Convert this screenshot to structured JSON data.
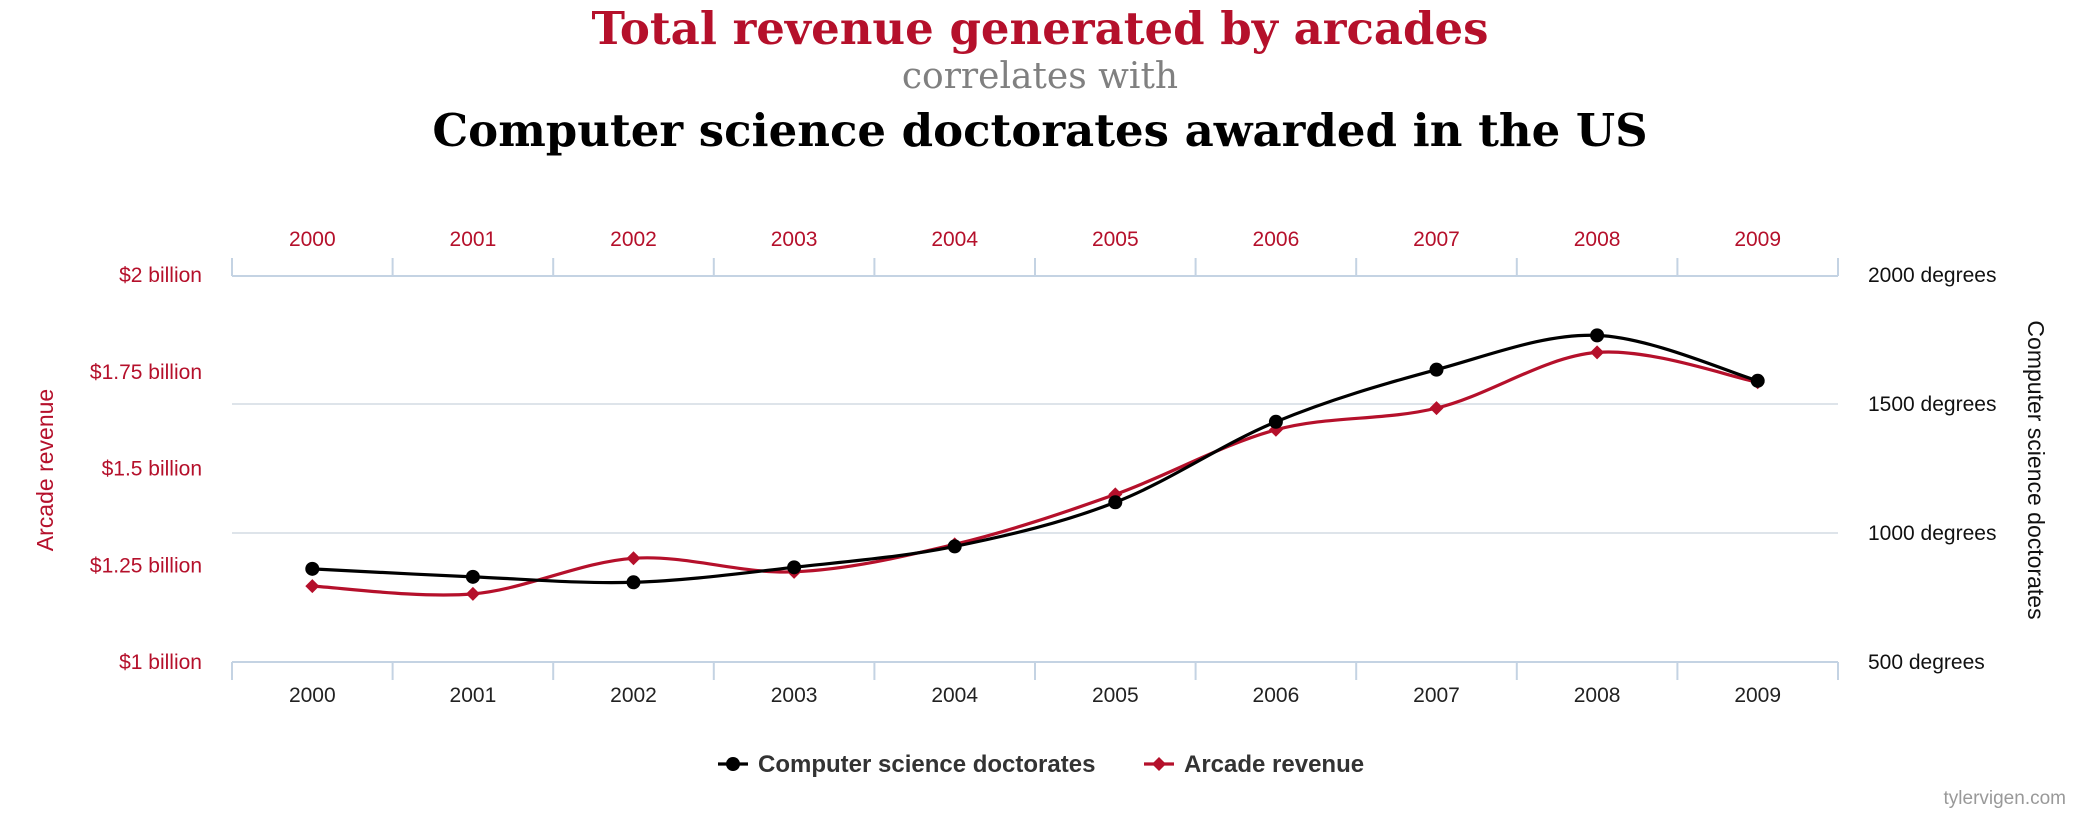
{
  "header": {
    "title": "Total revenue generated by arcades",
    "connector": "correlates with",
    "subtitle": "Computer science doctorates awarded in the US"
  },
  "watermark": "tylervigen.com",
  "colors": {
    "accent": "#b5102b",
    "secondary": "#000000",
    "axis": "#c4d3e3",
    "grid": "#d3dbe3"
  },
  "chart_data": {
    "type": "line",
    "x": [
      "2000",
      "2001",
      "2002",
      "2003",
      "2004",
      "2005",
      "2006",
      "2007",
      "2008",
      "2009"
    ],
    "y_left": {
      "label": "Arcade revenue",
      "range": [
        1,
        2
      ],
      "ticks": [
        {
          "value": 1,
          "label": "$1 billion"
        },
        {
          "value": 1.25,
          "label": "$1.25 billion"
        },
        {
          "value": 1.5,
          "label": "$1.5 billion"
        },
        {
          "value": 1.75,
          "label": "$1.75 billion"
        },
        {
          "value": 2,
          "label": "$2 billion"
        }
      ]
    },
    "y_right": {
      "label": "Computer science doctorates",
      "range": [
        500,
        2000
      ],
      "ticks": [
        {
          "value": 500,
          "label": "500 degrees"
        },
        {
          "value": 1000,
          "label": "1000 degrees"
        },
        {
          "value": 1500,
          "label": "1500 degrees"
        },
        {
          "value": 2000,
          "label": "2000 degrees"
        }
      ]
    },
    "grid": true,
    "legend_position": "bottom-center",
    "series": [
      {
        "name": "Computer science doctorates",
        "axis": "right",
        "color": "#000000",
        "marker": "circle",
        "values": [
          861,
          830,
          809,
          867,
          948,
          1119,
          1431,
          1633,
          1766,
          1590
        ]
      },
      {
        "name": "Arcade revenue",
        "axis": "left",
        "color": "#b5102b",
        "marker": "diamond",
        "values": [
          1.196,
          1.176,
          1.268,
          1.233,
          1.304,
          1.433,
          1.6,
          1.656,
          1.8,
          1.723
        ]
      }
    ]
  }
}
